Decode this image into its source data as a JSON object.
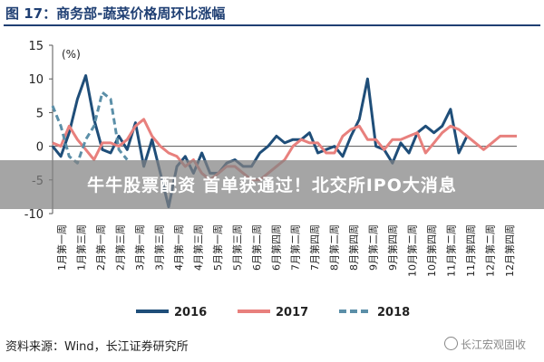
{
  "figure": {
    "title": "图 17：商务部-蔬菜价格周环比涨幅",
    "source": "资料来源：Wind，长江证券研究所",
    "watermark": "长江宏观固收",
    "banner": "牛牛股票配资 首单获通过！北交所IPO大消息"
  },
  "chart_data": {
    "type": "line",
    "title": "",
    "ylabel": "(%)",
    "xlabel": "",
    "ylim": [
      -10,
      15
    ],
    "yticks": [
      -10,
      -5,
      0,
      5,
      10,
      15
    ],
    "x_tick_labels": [
      "1月第一周",
      "1月第三周",
      "2月第一周",
      "2月第三周",
      "3月第一周",
      "3月第三周",
      "4月第一周",
      "4月第三周",
      "5月第一周",
      "5月第三周",
      "6月第二周",
      "6月第四周",
      "7月第二周",
      "7月第四周",
      "8月第二周",
      "8月第四周",
      "9月第二周",
      "9月第四周",
      "10月第二周",
      "10月第四周",
      "11月第二周",
      "11月第四周",
      "12月第二周",
      "12月第四周"
    ],
    "legend_position": "bottom",
    "grid": false,
    "series": [
      {
        "name": "2016",
        "color": "#1f4e79",
        "dash": "solid",
        "x": [
          1,
          2,
          3,
          4,
          5,
          6,
          7,
          8,
          9,
          10,
          11,
          12,
          13,
          14,
          15,
          16,
          17,
          18,
          19,
          20,
          21,
          22,
          23,
          24,
          25,
          26,
          27,
          28,
          29,
          30,
          31,
          32,
          33,
          34,
          35,
          36,
          37,
          38,
          39,
          40,
          41,
          42,
          43,
          44,
          45,
          46,
          47,
          48,
          49,
          50,
          51
        ],
        "values": [
          0,
          -1.5,
          2,
          7,
          10.5,
          4,
          -0.5,
          -1,
          1.5,
          -0.5,
          3.5,
          -3,
          1,
          -4,
          -9,
          -3,
          -1.5,
          -4,
          -1,
          -4,
          -4,
          -2.5,
          -2,
          -3,
          -3,
          -1,
          0,
          1.5,
          0.5,
          1,
          1,
          2,
          -1,
          -0.5,
          0,
          -1.5,
          1.5,
          4,
          10,
          0,
          -0.5,
          -2.5,
          0.5,
          -1,
          2,
          3,
          2,
          3,
          5.5,
          -1,
          1.5
        ]
      },
      {
        "name": "2017",
        "color": "#e8807d",
        "dash": "solid",
        "x": [
          1,
          2,
          3,
          4,
          5,
          6,
          7,
          8,
          9,
          10,
          11,
          12,
          13,
          14,
          15,
          16,
          17,
          18,
          19,
          20,
          21,
          22,
          23,
          24,
          25,
          26,
          27,
          28,
          29,
          30,
          31,
          32,
          33,
          34,
          35,
          36,
          37,
          38,
          39,
          40,
          41,
          42,
          43,
          44,
          45,
          46,
          47,
          48,
          49,
          50,
          51,
          52,
          53,
          54,
          55,
          56,
          57
        ],
        "values": [
          0.5,
          0,
          3,
          1,
          -0.5,
          -2,
          0.5,
          0.5,
          0,
          1,
          3,
          4,
          1.5,
          0,
          -1,
          -1.5,
          -3,
          -2,
          -4,
          -5,
          -4,
          -3,
          -3,
          -4,
          -5,
          -5,
          -4,
          -3,
          -2,
          0,
          1,
          0.5,
          0.5,
          -1,
          -1,
          1.5,
          2.5,
          3,
          1,
          1,
          -0.5,
          1,
          1,
          1.5,
          2,
          -1,
          0.5,
          2,
          3,
          2.5,
          1.5,
          0.5,
          -0.5,
          0.5,
          1.5,
          1.5,
          1.5
        ]
      },
      {
        "name": "2018",
        "color": "#5b8fa8",
        "dash": "dashed",
        "x": [
          1,
          2,
          3,
          4,
          5,
          6,
          7,
          8,
          9,
          10
        ],
        "values": [
          6,
          3,
          -1.5,
          -2.5,
          1,
          3,
          8,
          7,
          -0.5,
          -2
        ]
      }
    ]
  }
}
